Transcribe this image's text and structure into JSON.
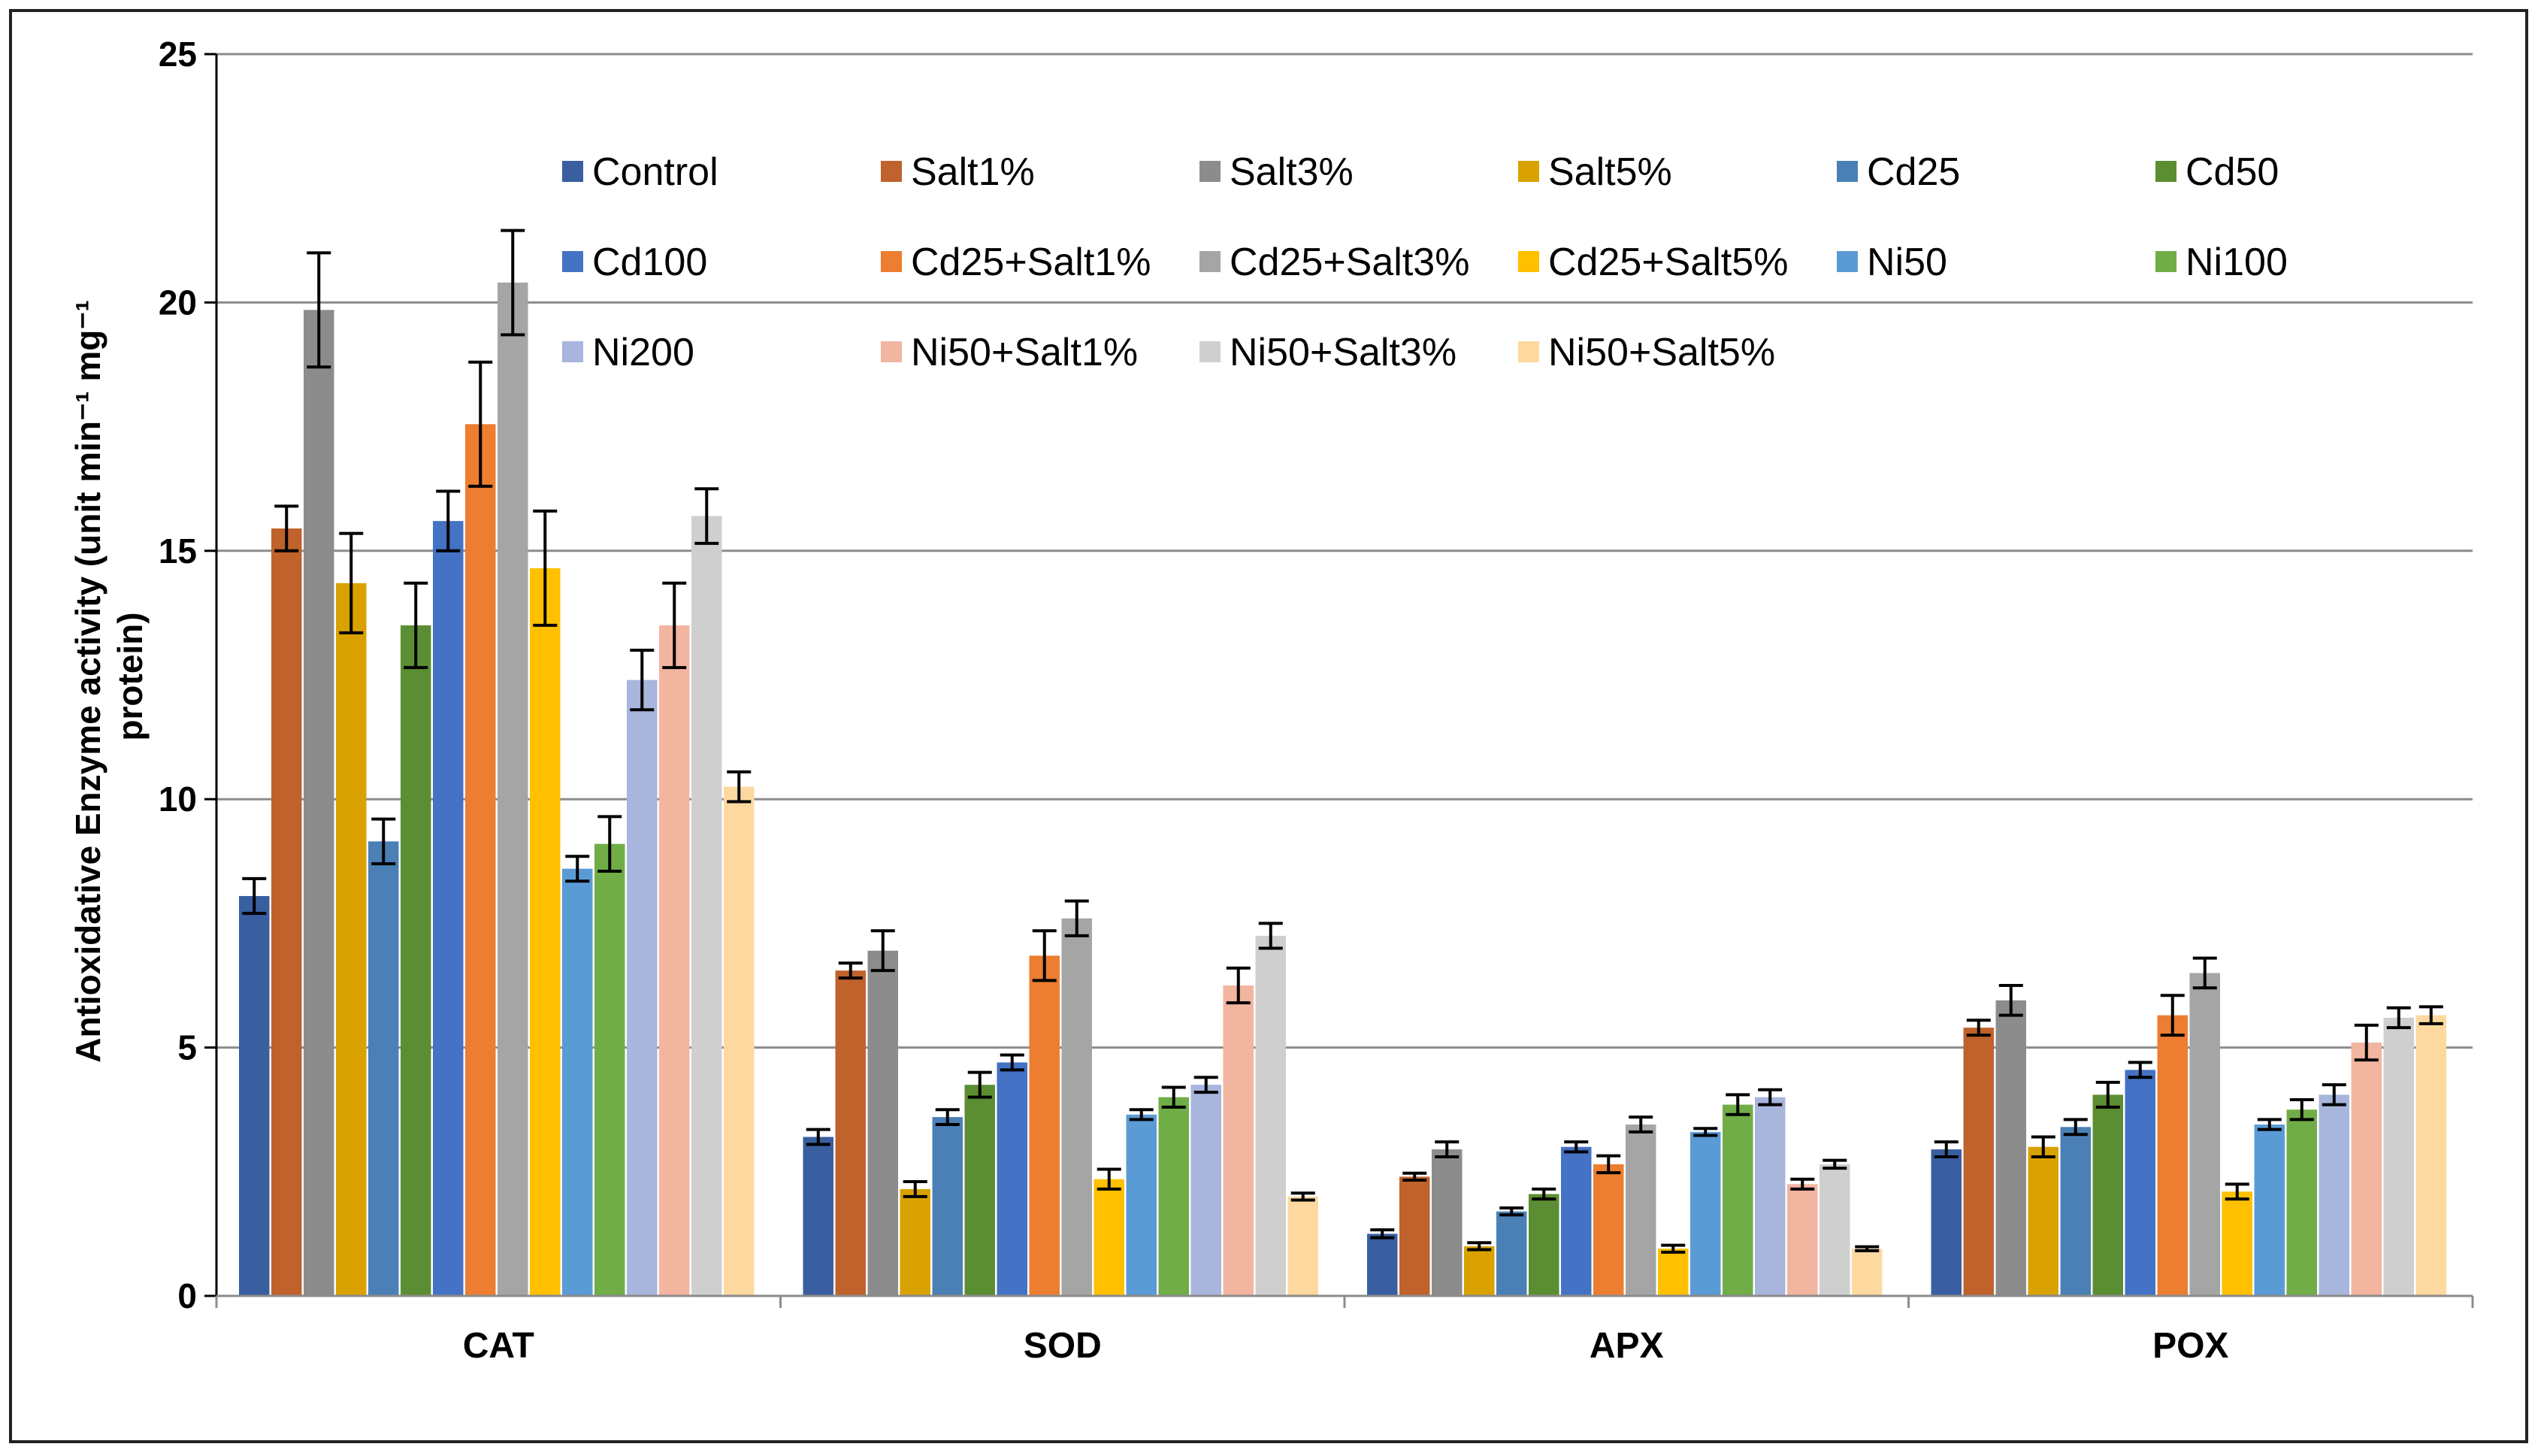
{
  "chart_data": {
    "type": "bar",
    "title": "",
    "xlabel": "",
    "ylabel_line1": "Antioxidative Enzyme activity (unit min⁻¹ mg⁻¹",
    "ylabel_line2": "protein)",
    "ylim": [
      0,
      25
    ],
    "yticks": [
      "0",
      "5",
      "10",
      "15",
      "20",
      "25"
    ],
    "grid": "horizontal",
    "legend_position": "top (inside plot, 6 columns)",
    "categories": [
      "CAT",
      "SOD",
      "APX",
      "POX"
    ],
    "series": [
      {
        "name": "Control",
        "color": "#3A5FA0",
        "values": [
          8.05,
          3.2,
          1.25,
          2.95
        ],
        "errors": [
          0.35,
          0.15,
          0.08,
          0.15
        ]
      },
      {
        "name": "Salt1%",
        "color": "#C0622C",
        "values": [
          15.45,
          6.55,
          2.4,
          5.4
        ],
        "errors": [
          0.45,
          0.15,
          0.07,
          0.15
        ]
      },
      {
        "name": "Salt3%",
        "color": "#8C8C8C",
        "values": [
          19.85,
          6.95,
          2.95,
          5.95
        ],
        "errors": [
          1.15,
          0.4,
          0.15,
          0.3
        ]
      },
      {
        "name": "Salt5%",
        "color": "#D9A200",
        "values": [
          14.35,
          2.15,
          1.0,
          3.0
        ],
        "errors": [
          1.0,
          0.15,
          0.07,
          0.2
        ]
      },
      {
        "name": "Cd25",
        "color": "#4A80B5",
        "values": [
          9.15,
          3.6,
          1.7,
          3.4
        ],
        "errors": [
          0.45,
          0.15,
          0.07,
          0.15
        ]
      },
      {
        "name": "Cd50",
        "color": "#5B8E32",
        "values": [
          13.5,
          4.25,
          2.05,
          4.05
        ],
        "errors": [
          0.85,
          0.25,
          0.1,
          0.25
        ]
      },
      {
        "name": "Cd100",
        "color": "#4472C4",
        "values": [
          15.6,
          4.7,
          3.0,
          4.55
        ],
        "errors": [
          0.6,
          0.15,
          0.1,
          0.15
        ]
      },
      {
        "name": "Cd25+Salt1%",
        "color": "#ED7D31",
        "values": [
          17.55,
          6.85,
          2.65,
          5.65
        ],
        "errors": [
          1.25,
          0.5,
          0.17,
          0.4
        ]
      },
      {
        "name": "Cd25+Salt3%",
        "color": "#A5A5A5",
        "values": [
          20.4,
          7.6,
          3.45,
          6.5
        ],
        "errors": [
          1.05,
          0.35,
          0.15,
          0.3
        ]
      },
      {
        "name": "Cd25+Salt5%",
        "color": "#FFC000",
        "values": [
          14.65,
          2.35,
          0.95,
          2.1
        ],
        "errors": [
          1.15,
          0.2,
          0.07,
          0.15
        ]
      },
      {
        "name": "Ni50",
        "color": "#5B9BD5",
        "values": [
          8.6,
          3.65,
          3.3,
          3.45
        ],
        "errors": [
          0.25,
          0.1,
          0.07,
          0.1
        ]
      },
      {
        "name": "Ni100",
        "color": "#70AD47",
        "values": [
          9.1,
          4.0,
          3.85,
          3.75
        ],
        "errors": [
          0.55,
          0.2,
          0.2,
          0.2
        ]
      },
      {
        "name": "Ni200",
        "color": "#A8B5DC",
        "values": [
          12.4,
          4.25,
          4.0,
          4.05
        ],
        "errors": [
          0.6,
          0.15,
          0.15,
          0.2
        ]
      },
      {
        "name": "Ni50+Salt1%",
        "color": "#F2B5A0",
        "values": [
          13.5,
          6.25,
          2.25,
          5.1
        ],
        "errors": [
          0.85,
          0.35,
          0.1,
          0.35
        ]
      },
      {
        "name": "Ni50+Salt3%",
        "color": "#CFCFCF",
        "values": [
          15.7,
          7.25,
          2.65,
          5.6
        ],
        "errors": [
          0.55,
          0.25,
          0.08,
          0.2
        ]
      },
      {
        "name": "Ni50+Salt5%",
        "color": "#FDD9A0",
        "values": [
          10.25,
          2.0,
          0.95,
          5.65
        ],
        "errors": [
          0.3,
          0.07,
          0.04,
          0.17
        ]
      }
    ]
  }
}
